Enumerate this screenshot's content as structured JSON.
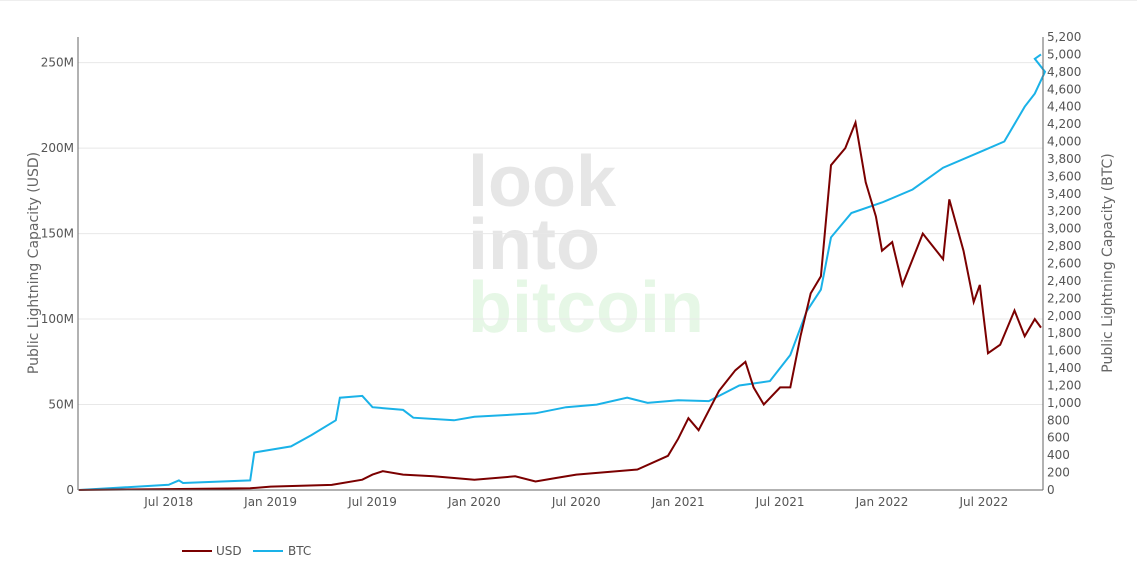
{
  "chart_data": {
    "type": "line",
    "watermark": [
      "look",
      "into",
      "bitcoin"
    ],
    "y_left": {
      "label": "Public Lightning Capacity (USD)",
      "range": [
        0,
        265000000
      ],
      "ticks": [
        0,
        50000000,
        100000000,
        150000000,
        200000000,
        250000000
      ],
      "tick_labels": [
        "0",
        "50M",
        "100M",
        "150M",
        "200M",
        "250M"
      ]
    },
    "y_right": {
      "label": "Public Lightning Capacity (BTC)",
      "range": [
        0,
        5200
      ],
      "ticks": [
        0,
        200,
        400,
        600,
        800,
        1000,
        1200,
        1400,
        1600,
        1800,
        2000,
        2200,
        2400,
        2600,
        2800,
        3000,
        3200,
        3400,
        3600,
        3800,
        4000,
        4200,
        4400,
        4600,
        4800,
        5000,
        5200
      ],
      "tick_labels": [
        "0",
        "200",
        "400",
        "600",
        "800",
        "1,000",
        "1,200",
        "1,400",
        "1,600",
        "1,800",
        "2,000",
        "2,200",
        "2,400",
        "2,600",
        "2,800",
        "3,000",
        "3,200",
        "3,400",
        "3,600",
        "3,800",
        "4,000",
        "4,200",
        "4,400",
        "4,600",
        "4,800",
        "5,000",
        "5,200"
      ]
    },
    "x": {
      "range": [
        2018.055,
        2022.79
      ],
      "ticks": [
        2018.5,
        2019.0,
        2019.5,
        2020.0,
        2020.5,
        2021.0,
        2021.5,
        2022.0,
        2022.5
      ],
      "tick_labels": [
        "Jul 2018",
        "Jan 2019",
        "Jul 2019",
        "Jan 2020",
        "Jul 2020",
        "Jan 2021",
        "Jul 2021",
        "Jan 2022",
        "Jul 2022"
      ]
    },
    "grid": true,
    "legend": "bottom-left",
    "series": [
      {
        "name": "USD",
        "axis": "left",
        "color": "#7b0000",
        "x": [
          2018.06,
          2018.5,
          2018.9,
          2019.0,
          2019.3,
          2019.45,
          2019.5,
          2019.55,
          2019.65,
          2019.8,
          2020.0,
          2020.2,
          2020.3,
          2020.4,
          2020.5,
          2020.8,
          2020.95,
          2021.0,
          2021.05,
          2021.1,
          2021.2,
          2021.28,
          2021.33,
          2021.37,
          2021.42,
          2021.5,
          2021.55,
          2021.6,
          2021.65,
          2021.7,
          2021.75,
          2021.82,
          2021.87,
          2021.92,
          2021.97,
          2022.0,
          2022.05,
          2022.1,
          2022.2,
          2022.3,
          2022.33,
          2022.4,
          2022.45,
          2022.48,
          2022.52,
          2022.58,
          2022.65,
          2022.7,
          2022.75,
          2022.78
        ],
        "values": [
          0,
          500000,
          1000000,
          2000000,
          3000000,
          6000000,
          9000000,
          11000000,
          9000000,
          8000000,
          6000000,
          8000000,
          5000000,
          7000000,
          9000000,
          12000000,
          20000000,
          30000000,
          42000000,
          35000000,
          58000000,
          70000000,
          75000000,
          60000000,
          50000000,
          60000000,
          60000000,
          90000000,
          115000000,
          125000000,
          190000000,
          200000000,
          215000000,
          180000000,
          160000000,
          140000000,
          145000000,
          120000000,
          150000000,
          135000000,
          170000000,
          140000000,
          110000000,
          120000000,
          80000000,
          85000000,
          105000000,
          90000000,
          100000000,
          95000000
        ]
      },
      {
        "name": "BTC",
        "axis": "right",
        "color": "#1ab2e8",
        "x": [
          2018.06,
          2018.5,
          2018.55,
          2018.57,
          2018.9,
          2018.92,
          2019.1,
          2019.2,
          2019.32,
          2019.34,
          2019.45,
          2019.5,
          2019.65,
          2019.7,
          2019.9,
          2020.0,
          2020.3,
          2020.45,
          2020.6,
          2020.75,
          2020.85,
          2021.0,
          2021.15,
          2021.3,
          2021.45,
          2021.55,
          2021.63,
          2021.7,
          2021.75,
          2021.85,
          2022.0,
          2022.15,
          2022.3,
          2022.5,
          2022.6,
          2022.7,
          2022.75,
          2022.8,
          2022.75,
          2022.78
        ],
        "values": [
          0,
          60,
          110,
          80,
          110,
          430,
          500,
          630,
          800,
          1060,
          1080,
          950,
          920,
          830,
          800,
          840,
          880,
          950,
          980,
          1060,
          1000,
          1030,
          1020,
          1200,
          1250,
          1550,
          2050,
          2300,
          2900,
          3180,
          3300,
          3450,
          3700,
          3900,
          4000,
          4400,
          4550,
          4800,
          4950,
          5000
        ]
      }
    ]
  }
}
